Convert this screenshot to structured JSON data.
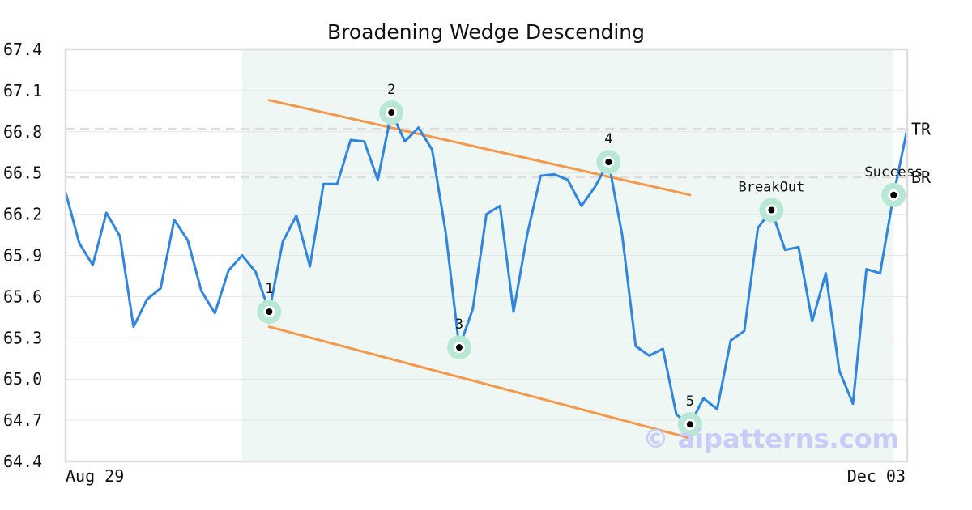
{
  "chart_data": {
    "type": "line",
    "title": "Broadening Wedge Descending",
    "watermark": "© aipatterns.com",
    "ylim": [
      64.4,
      67.4
    ],
    "y_ticks": [
      "67.4",
      "67.1",
      "66.8",
      "66.5",
      "66.2",
      "65.9",
      "65.6",
      "65.3",
      "65.0",
      "64.7",
      "64.4"
    ],
    "x_ticks": [
      "Aug 29",
      "Dec 03"
    ],
    "grid": true,
    "colors": {
      "price": "#2f86e0",
      "trendline": "#f4994b",
      "highlight_band": "#eef7f3",
      "reference_line": "#dddddd",
      "marker_ring": "#b8e8d3",
      "marker_dot": "#000000"
    },
    "series": [
      {
        "values": [
          66.36,
          65.99,
          65.83,
          66.21,
          66.04,
          65.38,
          65.58,
          65.66,
          66.16,
          66.01,
          65.64,
          65.48,
          65.79,
          65.9,
          65.78,
          65.49,
          66.0,
          66.19,
          65.82,
          66.42,
          66.42,
          66.74,
          66.73,
          66.45,
          66.94,
          66.73,
          66.83,
          66.67,
          66.07,
          65.23,
          65.51,
          66.2,
          66.26,
          65.49,
          66.05,
          66.48,
          66.49,
          66.45,
          66.26,
          66.4,
          66.58,
          66.05,
          65.24,
          65.17,
          65.22,
          64.74,
          64.67,
          64.86,
          64.78,
          65.28,
          65.35,
          66.1,
          66.23,
          65.94,
          65.96,
          65.42,
          65.77,
          65.06,
          64.82,
          65.8,
          65.77,
          66.34,
          66.82
        ]
      }
    ],
    "highlight_range": [
      13,
      61
    ],
    "trendlines": [
      {
        "x": [
          15,
          46
        ],
        "y": [
          67.03,
          66.34
        ]
      },
      {
        "x": [
          15,
          46
        ],
        "y": [
          65.38,
          64.57
        ]
      }
    ],
    "reference_lines": [
      {
        "label": "TR",
        "y": 66.82
      },
      {
        "label": "BR",
        "y": 66.47
      }
    ],
    "annotations": [
      {
        "label": "1",
        "x": 15,
        "y": 65.49,
        "label_pos": "above"
      },
      {
        "label": "2",
        "x": 24,
        "y": 66.94,
        "label_pos": "above"
      },
      {
        "label": "3",
        "x": 29,
        "y": 65.23,
        "label_pos": "above"
      },
      {
        "label": "4",
        "x": 40,
        "y": 66.58,
        "label_pos": "above"
      },
      {
        "label": "5",
        "x": 46,
        "y": 64.67,
        "label_pos": "above"
      },
      {
        "label": "BreakOut",
        "x": 52,
        "y": 66.23,
        "label_pos": "above"
      },
      {
        "label": "Success",
        "x": 61,
        "y": 66.34,
        "label_pos": "above"
      }
    ]
  }
}
